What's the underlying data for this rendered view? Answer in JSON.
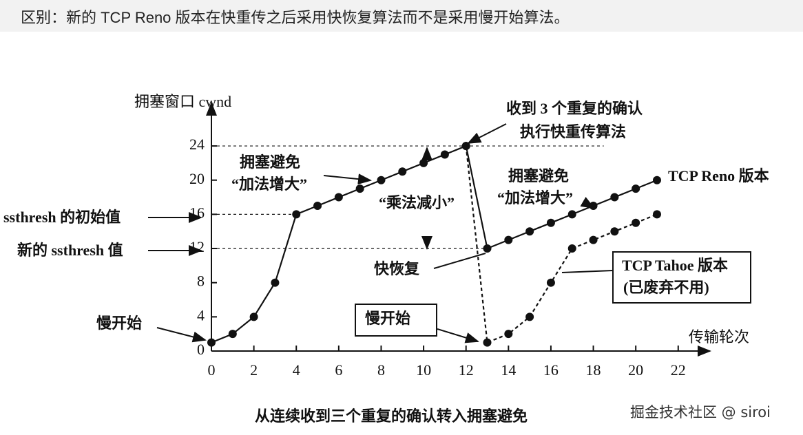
{
  "header": {
    "title": "区别：新的 TCP Reno 版本在快重传之后采用快恢复算法而不是采用慢开始算法。"
  },
  "chart_data": {
    "type": "line",
    "y_label": "拥塞窗口 cwnd",
    "x_label": "传输轮次",
    "x": [
      0,
      1,
      2,
      3,
      4,
      5,
      6,
      7,
      8,
      9,
      10,
      11,
      12,
      13,
      14,
      15,
      16,
      17,
      18,
      19,
      20,
      21
    ],
    "series": [
      {
        "name": "TCP Reno 版本",
        "color": "#111111",
        "dashed": false,
        "values": [
          1,
          2,
          4,
          8,
          16,
          17,
          18,
          19,
          20,
          21,
          22,
          23,
          24,
          12,
          13,
          14,
          15,
          16,
          17,
          18,
          19,
          20
        ]
      },
      {
        "name": "TCP Tahoe 版本",
        "color": "#111111",
        "dashed": true,
        "values": [
          null,
          null,
          null,
          null,
          null,
          null,
          null,
          null,
          null,
          null,
          null,
          null,
          24,
          1,
          2,
          4,
          8,
          12,
          13,
          14,
          15,
          16
        ]
      }
    ],
    "xlim": [
      0,
      23.5
    ],
    "ylim": [
      0,
      29
    ],
    "xticks": [
      0,
      2,
      4,
      6,
      8,
      10,
      12,
      14,
      16,
      18,
      20,
      22
    ],
    "yticks": [
      0,
      4,
      8,
      12,
      16,
      20,
      24
    ],
    "annotations": {
      "dup_ack": "收到 3 个重复的确认",
      "fast_retransmit": "执行快重传算法",
      "ca_left": "拥塞避免",
      "ai_left": "“加法增大”",
      "md": "“乘法减小”",
      "ca_right": "拥塞避免",
      "ai_right": "“加法增大”",
      "ssthresh_init": "ssthresh 的初始值",
      "ssthresh_new": "新的 ssthresh 值",
      "fast_recovery": "快恢复",
      "tahoe_note": "(已废弃不用)",
      "slow_start_left": "慢开始",
      "slow_start_right": "慢开始"
    },
    "caption": "从连续收到三个重复的确认转入拥塞避免"
  },
  "watermark": "掘金技术社区 @ siroi"
}
